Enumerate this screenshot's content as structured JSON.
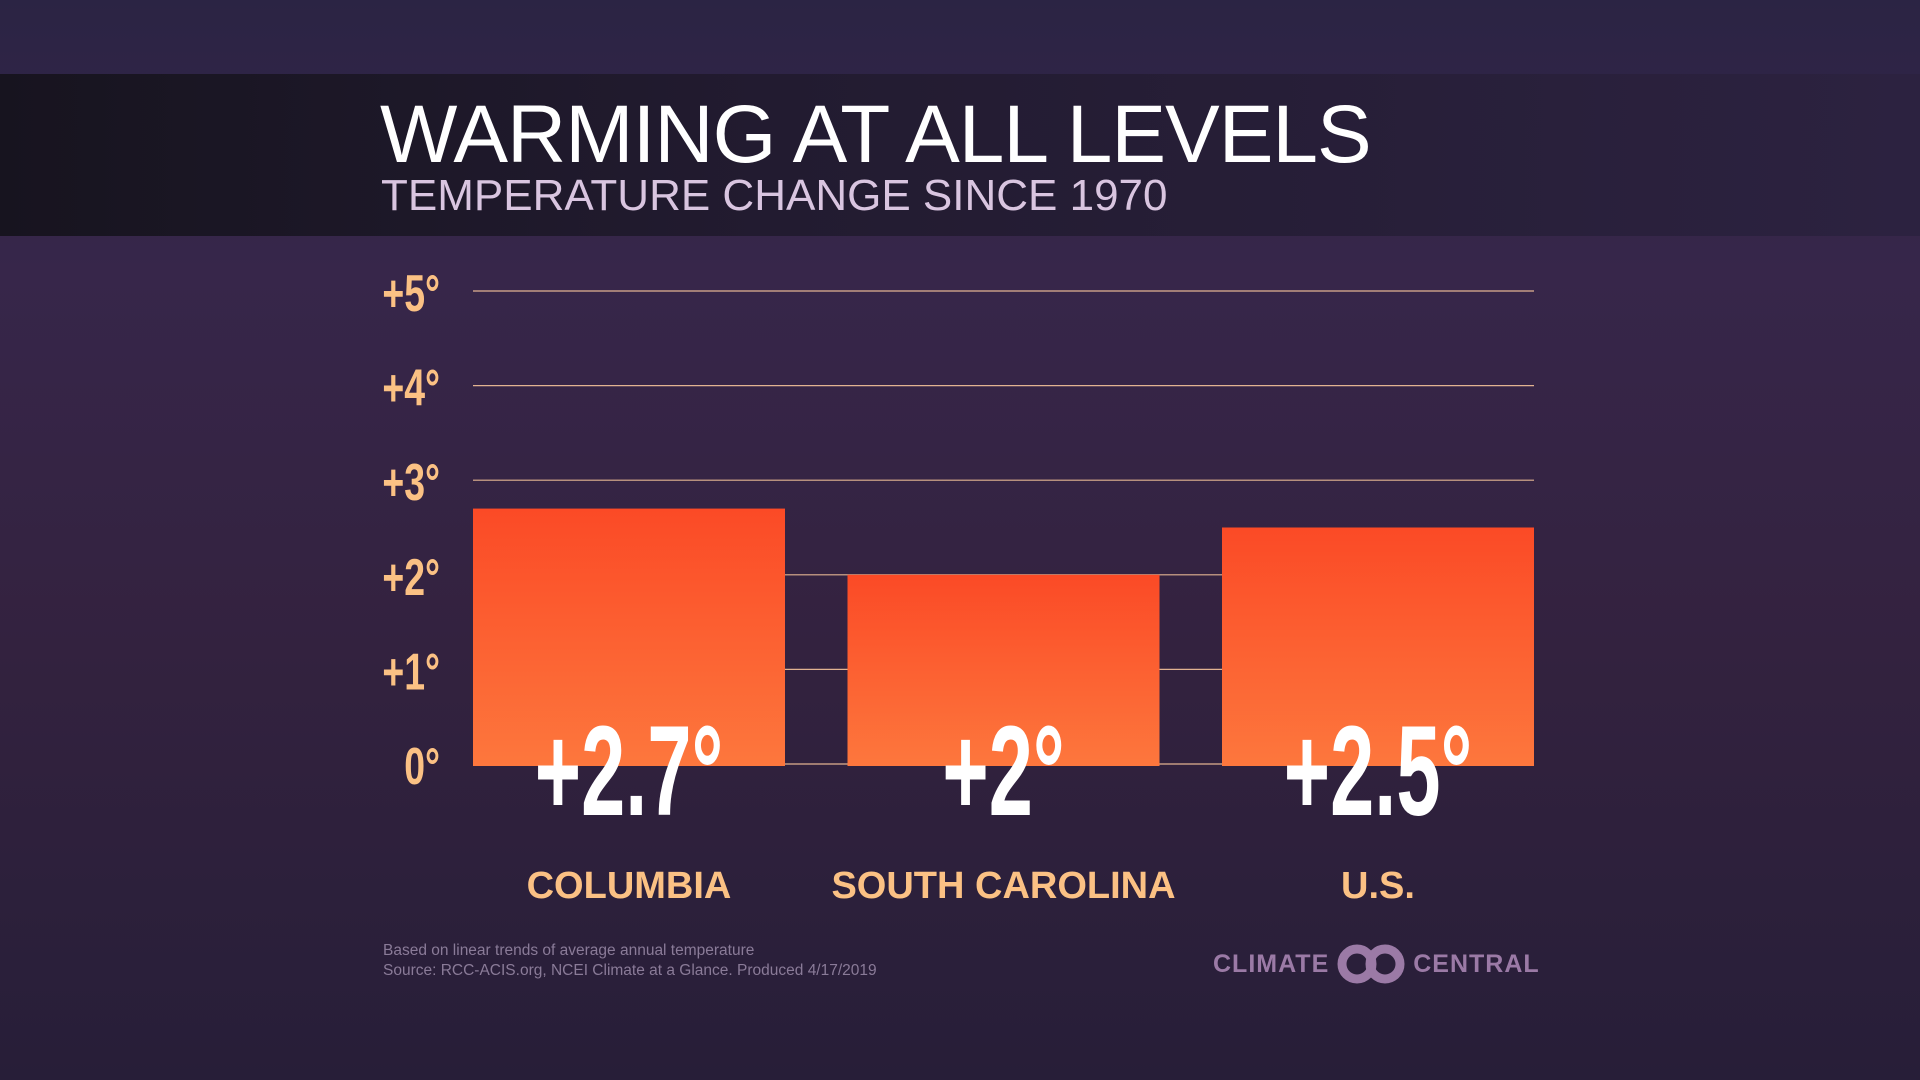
{
  "header": {
    "title": "WARMING AT ALL LEVELS",
    "subtitle": "TEMPERATURE CHANGE SINCE 1970"
  },
  "chart_data": {
    "type": "bar",
    "categories": [
      "COLUMBIA",
      "SOUTH CAROLINA",
      "U.S."
    ],
    "values": [
      2.7,
      2.0,
      2.5
    ],
    "data_labels": [
      "+2.7°",
      "+2°",
      "+2.5°"
    ],
    "yticks": [
      0,
      1,
      2,
      3,
      4,
      5
    ],
    "ytick_labels": [
      "0°",
      "+1°",
      "+2°",
      "+3°",
      "+4°",
      "+5°"
    ],
    "ylim": [
      0,
      5
    ],
    "grid": true,
    "colors": {
      "bar_top": "#fb4a26",
      "bar_bottom": "#fd773d",
      "tick": "#fbc184",
      "grid": "#f5c39a",
      "bar_label": "#ffffff"
    }
  },
  "footer": {
    "note": "Based on linear trends of average annual temperature",
    "source": "Source: RCC-ACIS.org, NCEI Climate at a Glance. Produced 4/17/2019"
  },
  "logo": {
    "left": "CLIMATE",
    "right": "CENTRAL",
    "color": "#9b7aa6"
  }
}
